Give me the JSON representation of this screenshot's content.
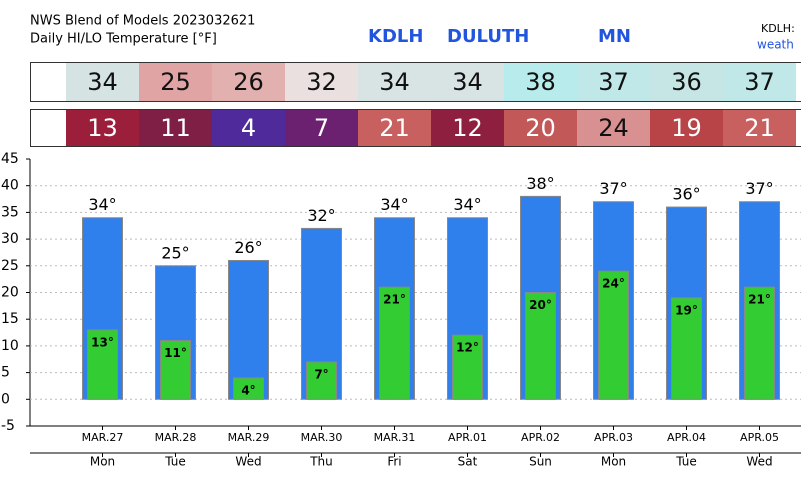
{
  "chart_data": {
    "type": "bar",
    "title": "NWS Blend of Models 2023032621",
    "subtitle": "Daily HI/LO Temperature [°F]",
    "station": "KDLH",
    "city": "DULUTH",
    "state": "MN",
    "side_label": "KDLH:",
    "side_link": "weath",
    "categories": [
      "MAR.27",
      "MAR.28",
      "MAR.29",
      "MAR.30",
      "MAR.31",
      "APR.01",
      "APR.02",
      "APR.03",
      "APR.04",
      "APR.05"
    ],
    "days": [
      "Mon",
      "Tue",
      "Wed",
      "Thu",
      "Fri",
      "Sat",
      "Sun",
      "Mon",
      "Tue",
      "Wed"
    ],
    "series": [
      {
        "color": "#2f7fec",
        "values": [
          34,
          25,
          26,
          32,
          34,
          34,
          38,
          37,
          36,
          37
        ],
        "value_labels": [
          "34°",
          "25°",
          "26°",
          "32°",
          "34°",
          "34°",
          "38°",
          "37°",
          "36°",
          "37°"
        ],
        "cell_colors": [
          "#d5e3e3",
          "#e0a4a4",
          "#e3b0b0",
          "#ebe0e0",
          "#d8e3e3",
          "#d8e3e3",
          "#b8ecec",
          "#c0e8e8",
          "#c6e6e6",
          "#c0e8e8"
        ]
      },
      {
        "color": "#33cc33",
        "values": [
          13,
          11,
          4,
          7,
          21,
          12,
          20,
          24,
          19,
          21
        ],
        "value_labels": [
          "13°",
          "11°",
          "4°",
          "7°",
          "21°",
          "12°",
          "20°",
          "24°",
          "19°",
          "21°"
        ],
        "cell_colors": [
          "#9b1f3a",
          "#7f1f46",
          "#4e2a9b",
          "#6b2070",
          "#c86060",
          "#8e1f3e",
          "#c25858",
          "#d89090",
          "#b84448",
          "#c86060"
        ]
      }
    ],
    "ylim": [
      -5,
      45
    ],
    "yticks": [
      -5,
      0,
      5,
      10,
      15,
      20,
      25,
      30,
      35,
      40,
      45
    ],
    "grid": true
  }
}
